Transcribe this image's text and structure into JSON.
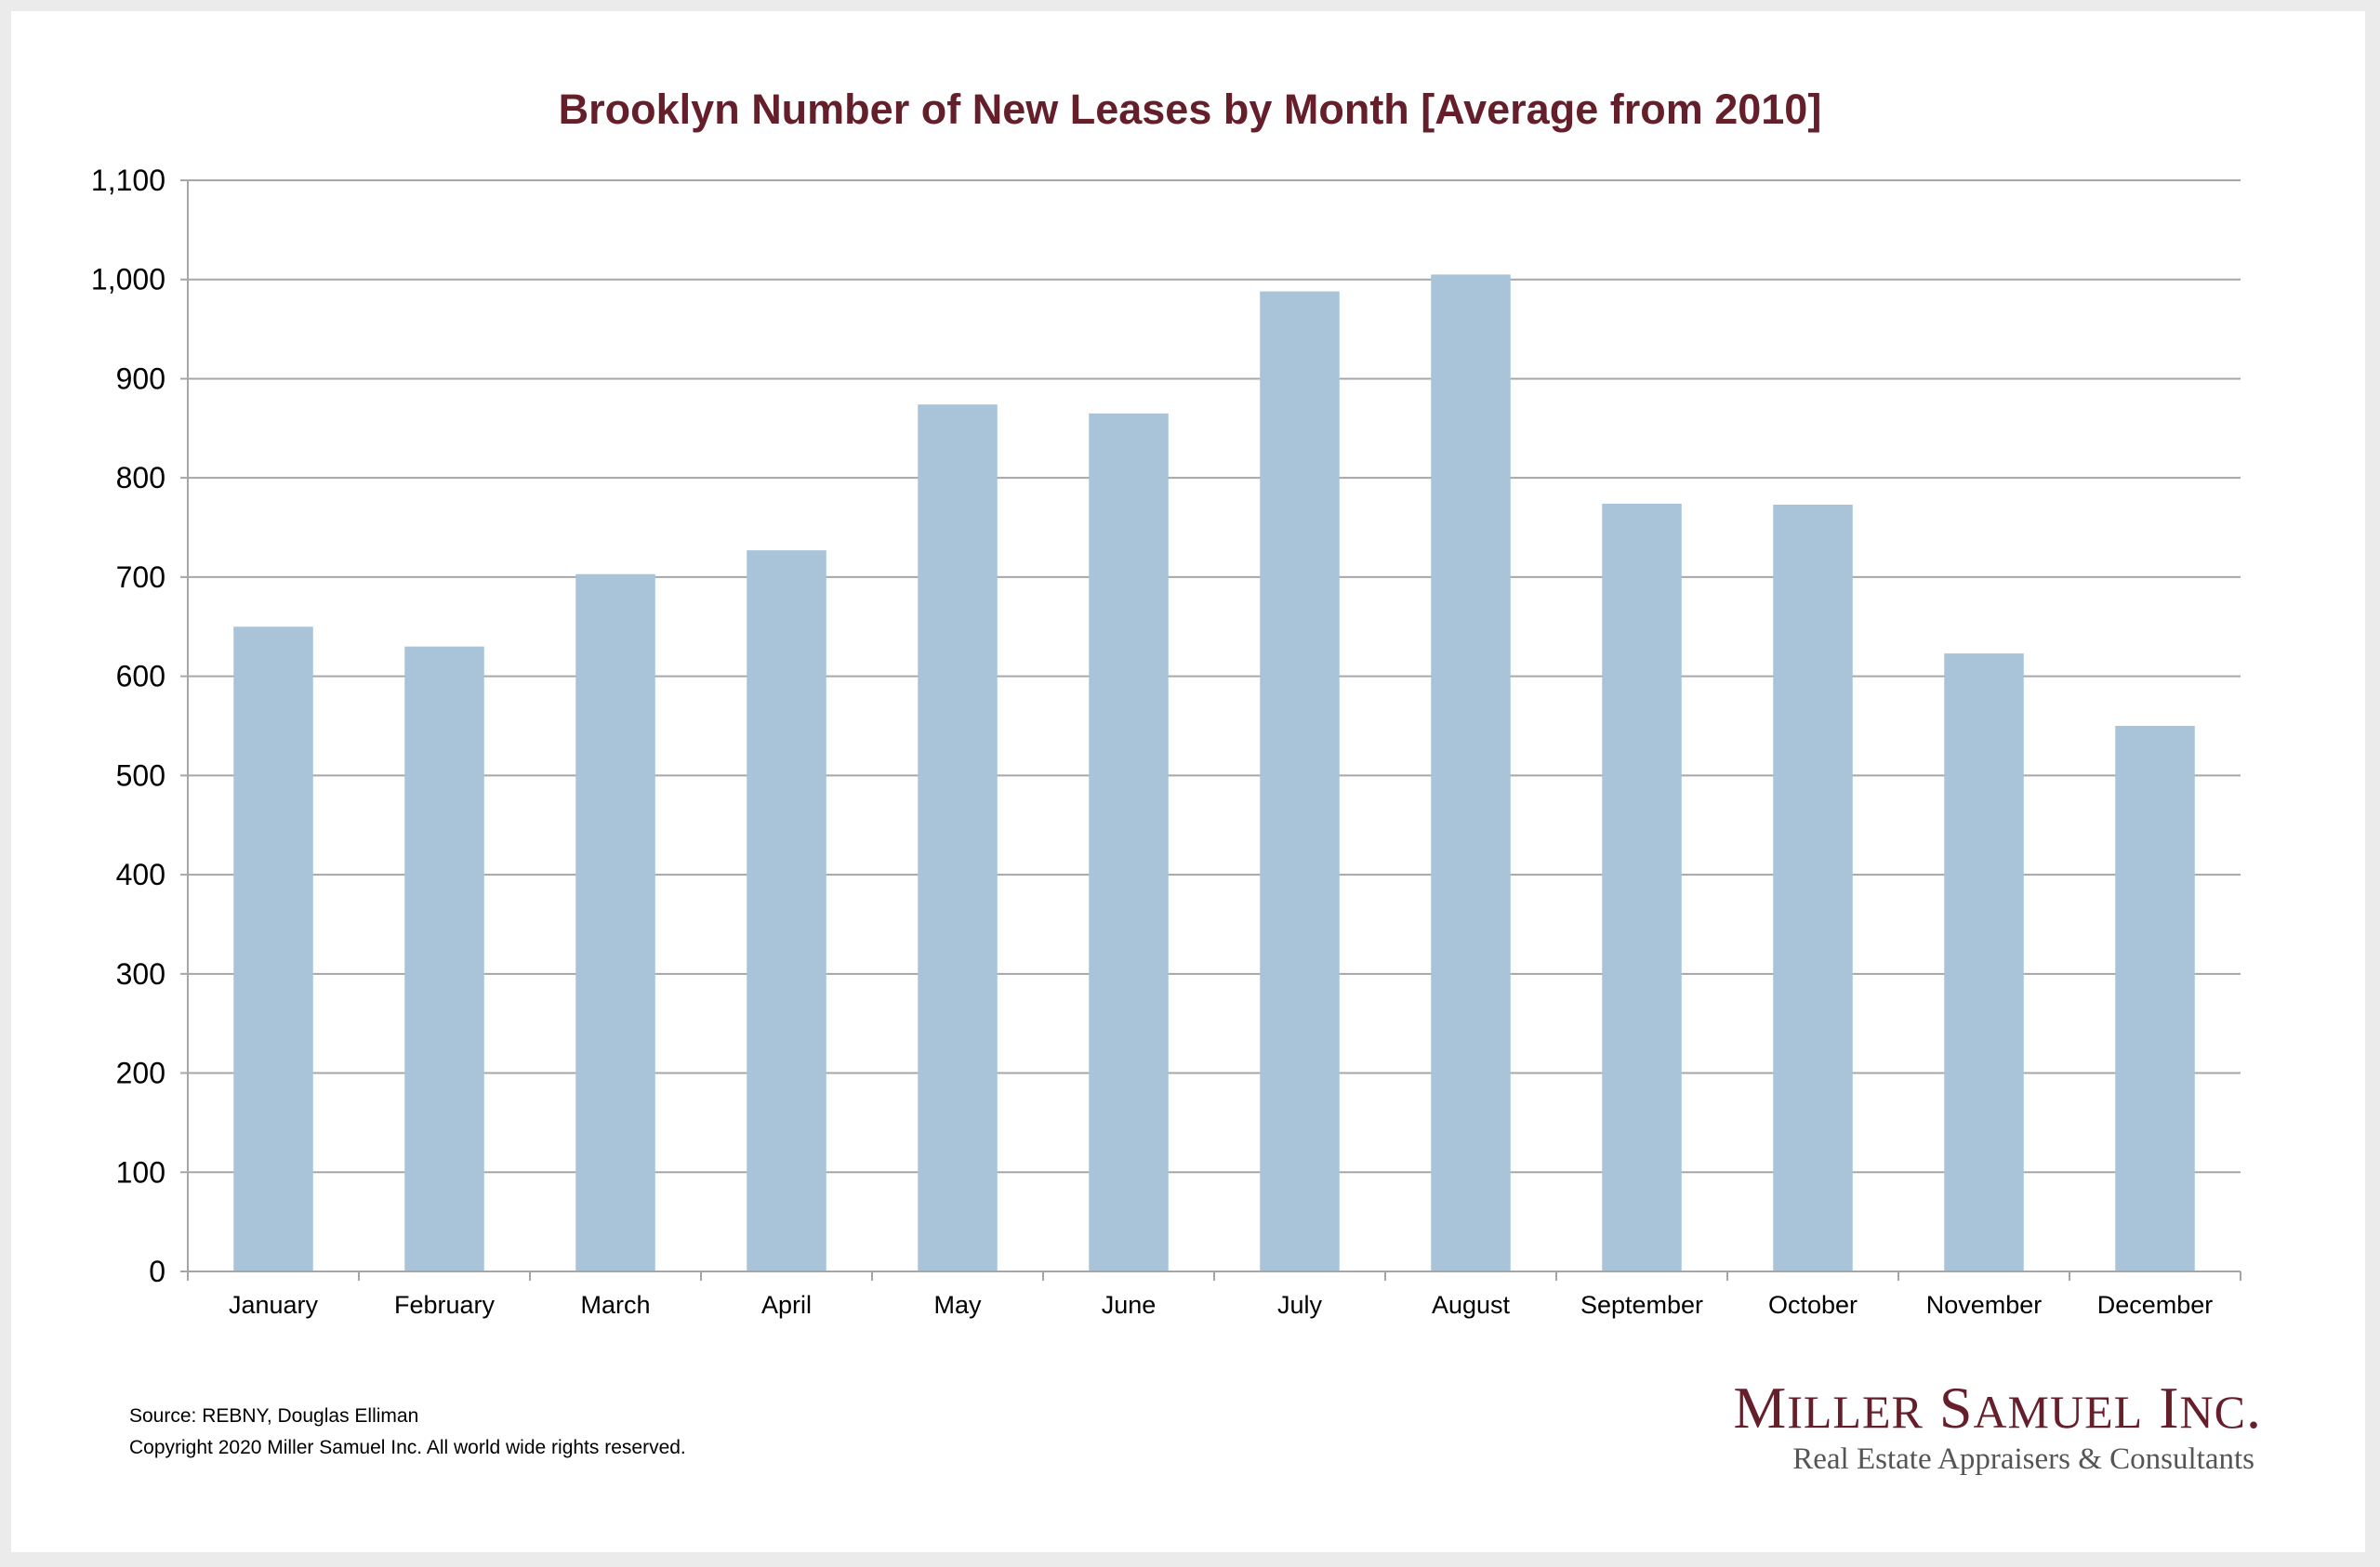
{
  "chart_data": {
    "type": "bar",
    "title": "Brooklyn Number of New Leases by Month [Average from 2010]",
    "categories": [
      "January",
      "February",
      "March",
      "April",
      "May",
      "June",
      "July",
      "August",
      "September",
      "October",
      "November",
      "December"
    ],
    "values": [
      650,
      630,
      703,
      727,
      874,
      865,
      988,
      1005,
      774,
      773,
      623,
      550
    ],
    "ylim": [
      0,
      1100
    ],
    "ytick_values": [
      0,
      100,
      200,
      300,
      400,
      500,
      600,
      700,
      800,
      900,
      1000,
      1100
    ],
    "ytick_labels": [
      "0",
      "100",
      "200",
      "300",
      "400",
      "500",
      "600",
      "700",
      "800",
      "900",
      "1,000",
      "1,100"
    ],
    "xlabel": "",
    "ylabel": "",
    "grid": true,
    "legend": "none",
    "bar_color": "#a9c4d9"
  },
  "footer": {
    "source": "Source: REBNY, Douglas Elliman",
    "copyright": "Copyright 2020 Miller Samuel Inc.  All world wide rights reserved."
  },
  "logo": {
    "name": "Miller Samuel Inc.",
    "tagline": "Real Estate Appraisers & Consultants"
  },
  "colors": {
    "title": "#641f2b",
    "bars": "#a9c4d9",
    "grid": "#a6a6a6",
    "logo_tagline": "#555555"
  }
}
